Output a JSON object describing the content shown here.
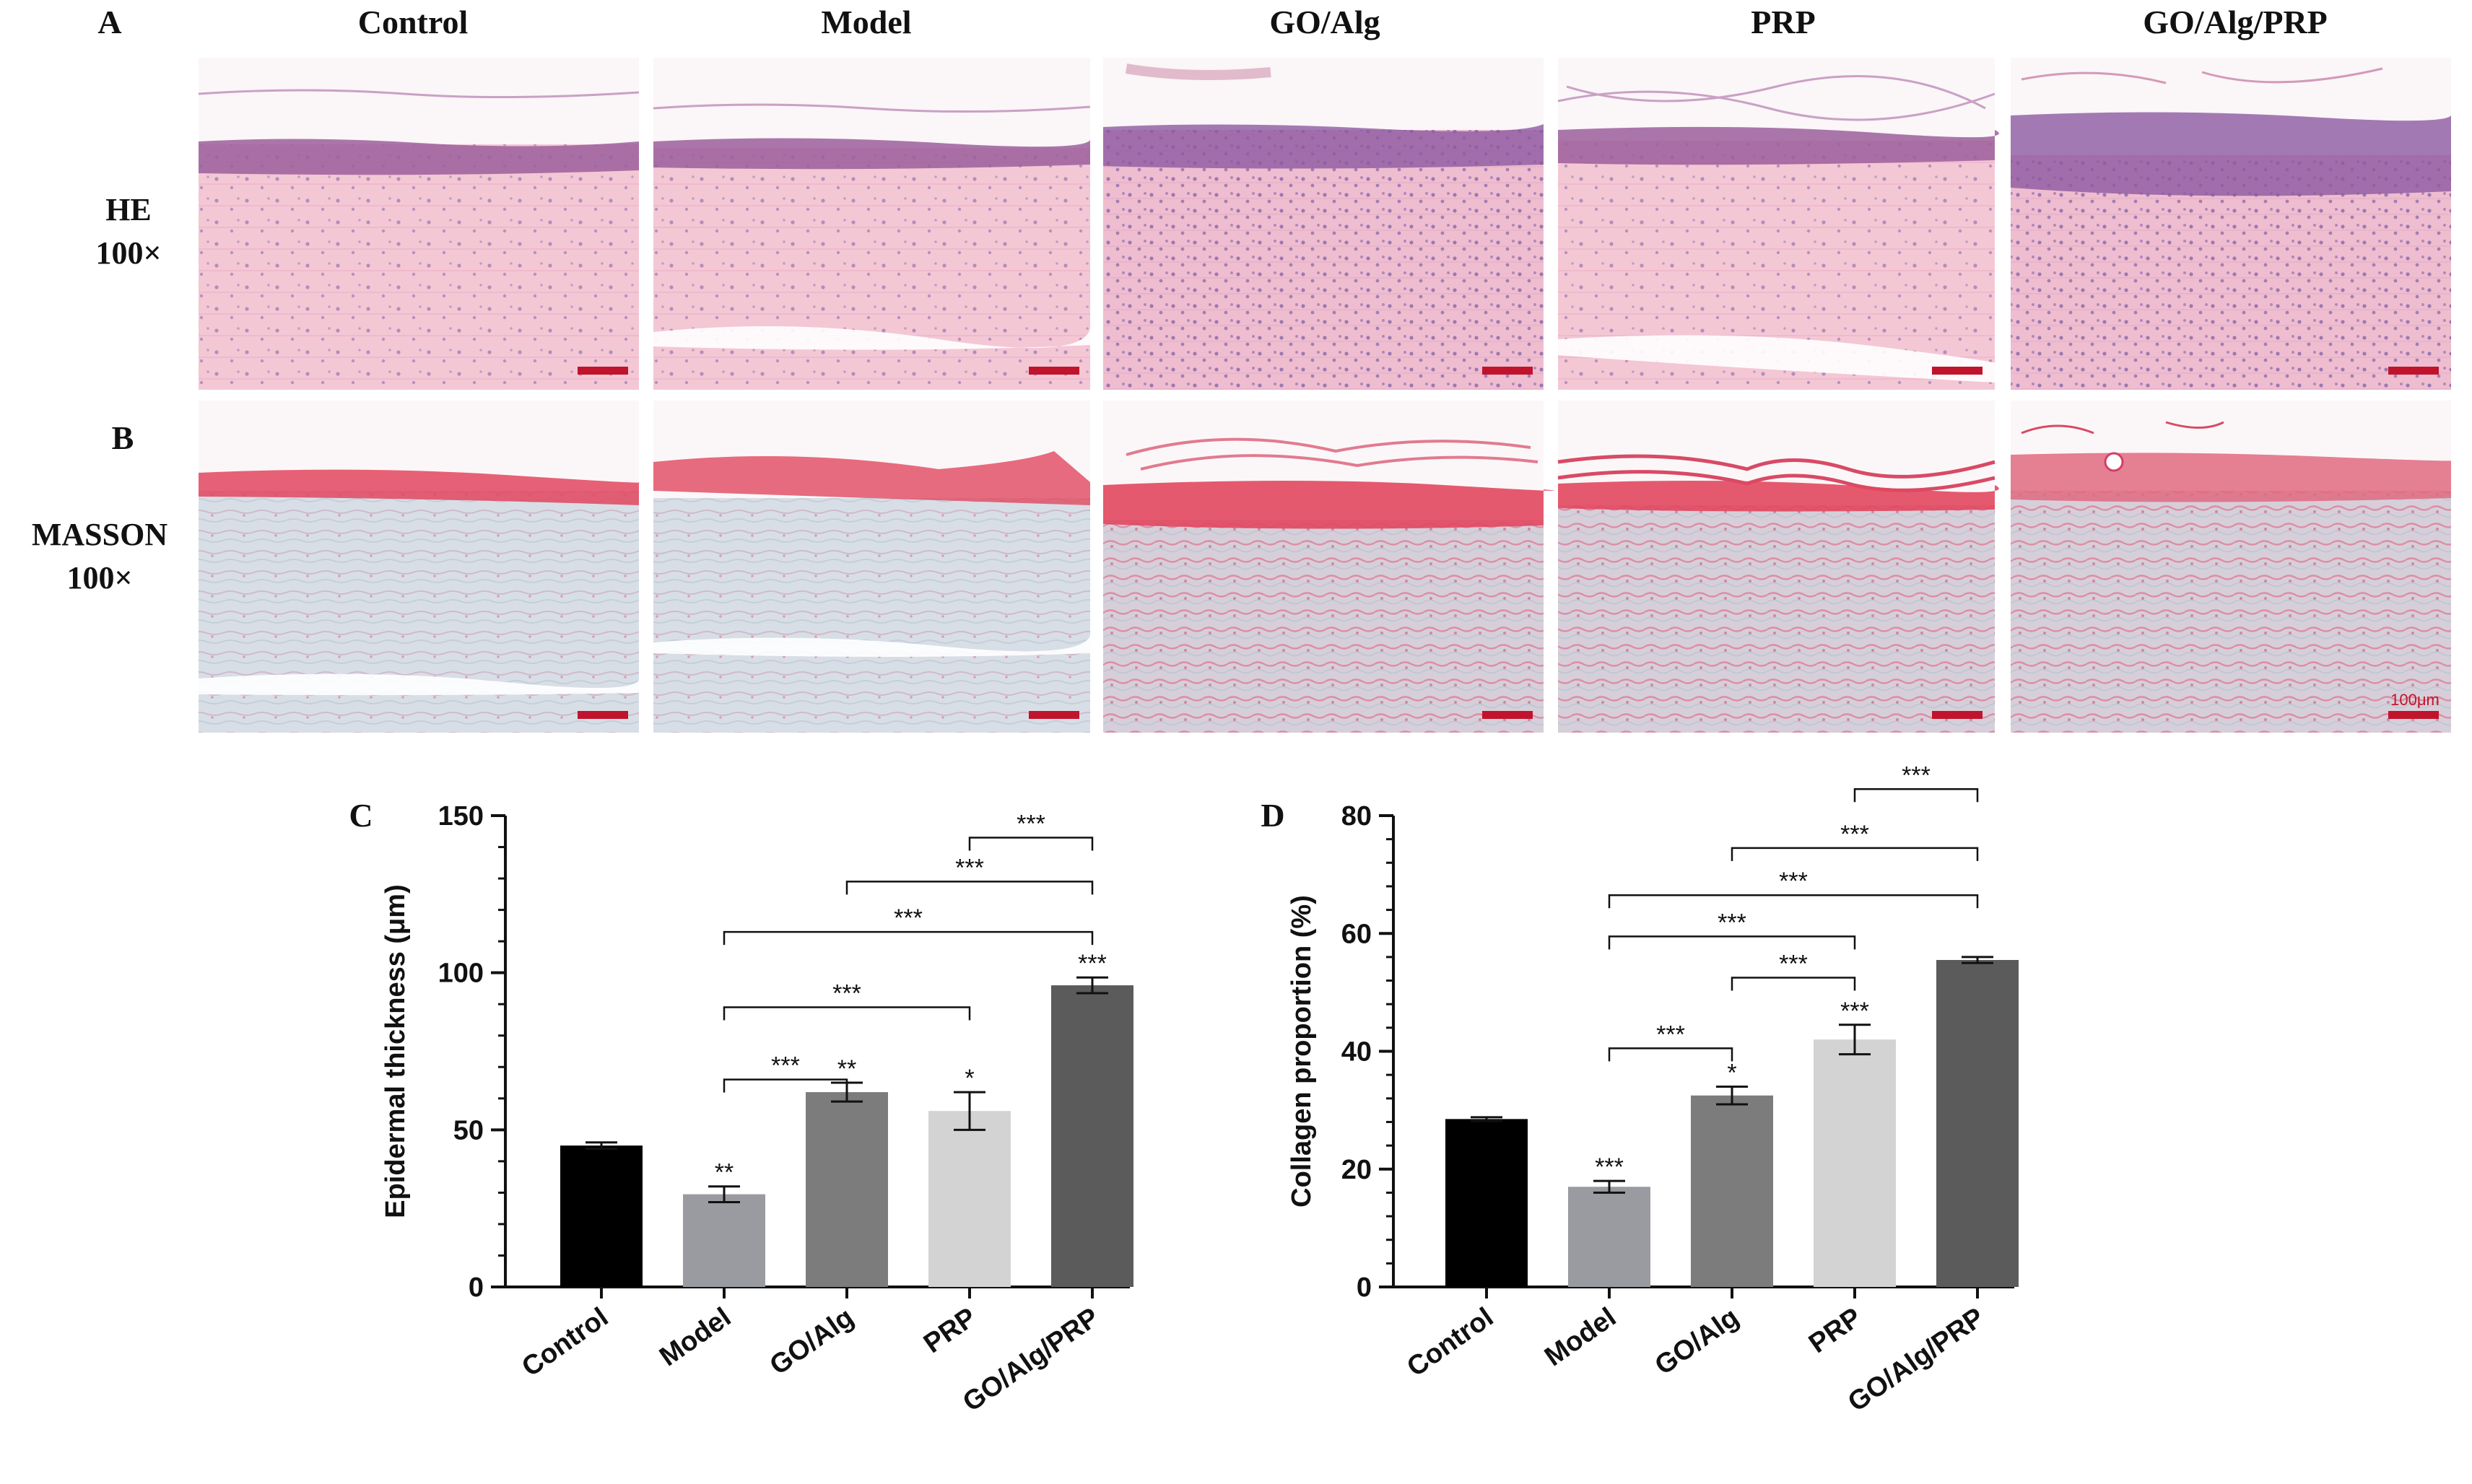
{
  "figure": {
    "panel_letters": {
      "a": "A",
      "b": "B",
      "c": "C",
      "d": "D"
    },
    "column_headers": [
      "Control",
      "Model",
      "GO/Alg",
      "PRP",
      "GO/Alg/PRP"
    ],
    "row_labels": {
      "he": [
        "HE",
        "100×"
      ],
      "masson": [
        "MASSON",
        "100×"
      ]
    },
    "scale_bar_text": "100μm",
    "colors": {
      "he_background": "#f3c9d6",
      "he_epidermis": "#9b5f9c",
      "masson_background": "#d9dfe6",
      "masson_epidermis": "#e2475f",
      "scale_bar": "#c0142c"
    }
  },
  "chart_data": [
    {
      "type": "bar",
      "panel": "C",
      "title": "",
      "xlabel": "",
      "ylabel": "Epidermal thickness (μm)",
      "categories": [
        "Control",
        "Model",
        "GO/Alg",
        "PRP",
        "GO/Alg/PRP"
      ],
      "values": [
        45,
        29.5,
        62,
        56,
        96
      ],
      "errors": [
        1,
        2.5,
        3,
        6,
        2.5
      ],
      "bar_colors": [
        "#000000",
        "#9a9ba0",
        "#7c7c7c",
        "#d3d3d3",
        "#5b5b5b"
      ],
      "ylim": [
        0,
        150
      ],
      "yticks": [
        0,
        50,
        100,
        150
      ],
      "bar_labels": [
        "",
        "**",
        "**",
        "*",
        "***"
      ],
      "comparisons": [
        {
          "from": 1,
          "to": 2,
          "level": 66,
          "label": "***"
        },
        {
          "from": 1,
          "to": 3,
          "level": 89,
          "label": "***"
        },
        {
          "from": 1,
          "to": 4,
          "level": 113,
          "label": "***"
        },
        {
          "from": 2,
          "to": 4,
          "level": 129,
          "label": "***"
        },
        {
          "from": 3,
          "to": 4,
          "level": 143,
          "label": "***"
        }
      ]
    },
    {
      "type": "bar",
      "panel": "D",
      "title": "",
      "xlabel": "",
      "ylabel": "Collagen proportion (%)",
      "categories": [
        "Control",
        "Model",
        "GO/Alg",
        "PRP",
        "GO/Alg/PRP"
      ],
      "values": [
        28.5,
        17,
        32.5,
        42,
        55.5
      ],
      "errors": [
        0.3,
        1,
        1.5,
        2.5,
        0.5
      ],
      "bar_colors": [
        "#000000",
        "#9a9ba0",
        "#7c7c7c",
        "#d3d3d3",
        "#5b5b5b"
      ],
      "ylim": [
        0,
        80
      ],
      "yticks": [
        0,
        20,
        40,
        60,
        80
      ],
      "bar_labels": [
        "",
        "***",
        "*",
        "***",
        ""
      ],
      "comparisons": [
        {
          "from": 1,
          "to": 2,
          "level": 40.5,
          "label": "***"
        },
        {
          "from": 2,
          "to": 3,
          "level": 52.5,
          "label": "***"
        },
        {
          "from": 1,
          "to": 3,
          "level": 59.5,
          "label": "***"
        },
        {
          "from": 1,
          "to": 4,
          "level": 66.5,
          "label": "***"
        },
        {
          "from": 2,
          "to": 4,
          "level": 74.5,
          "label": "***"
        },
        {
          "from": 3,
          "to": 4,
          "level": 84.5,
          "label": "***"
        }
      ]
    }
  ]
}
